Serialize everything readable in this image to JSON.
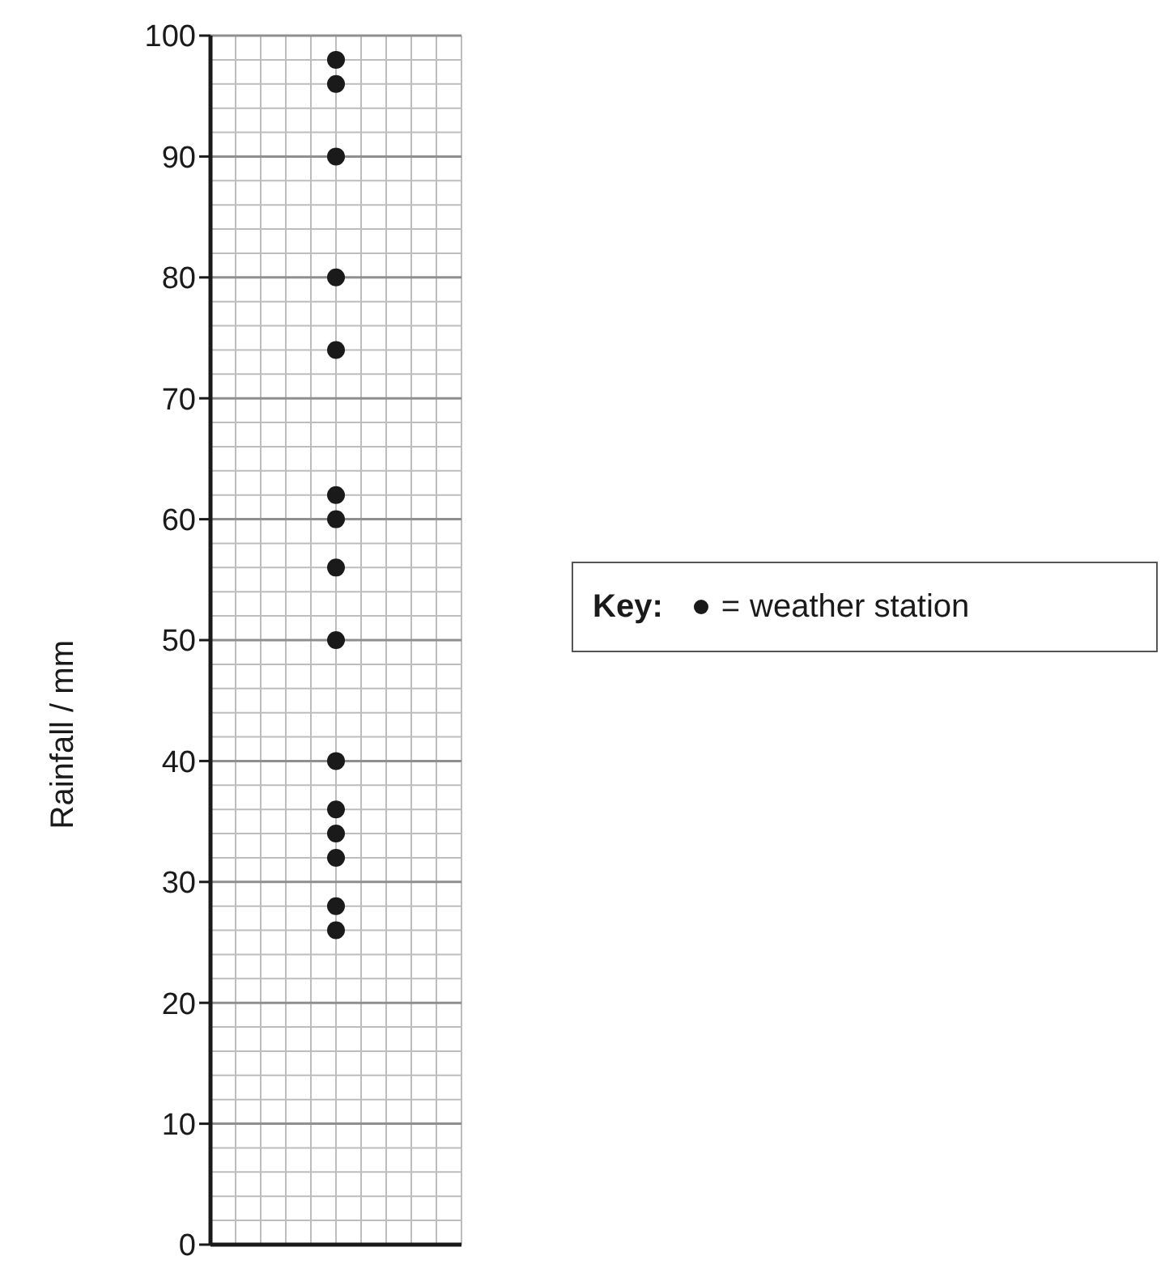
{
  "chart_data": {
    "type": "scatter",
    "ylabel": "Rainfall / mm",
    "legend_title": "Key:",
    "categories": [
      null
    ],
    "series": [
      {
        "name": "weather station",
        "color": "#1a1a1a",
        "x": [
          null,
          null,
          null,
          null,
          null,
          null,
          null,
          null,
          null,
          null,
          null,
          null,
          null,
          null,
          null
        ],
        "values": [
          98,
          96,
          90,
          80,
          74,
          62,
          60,
          56,
          50,
          40,
          36,
          34,
          32,
          28,
          26
        ]
      }
    ],
    "ylim": [
      0,
      100
    ],
    "yticks": [
      0,
      10,
      20,
      30,
      40,
      50,
      60,
      70,
      80,
      90,
      100
    ],
    "grid": true,
    "annotations": [
      "="
    ],
    "legend": "right",
    "marker": "circle"
  }
}
